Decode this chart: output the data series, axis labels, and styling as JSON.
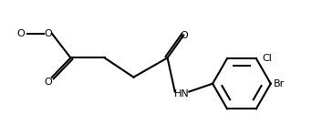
{
  "bg_color": "#ffffff",
  "line_color": "#000000",
  "line_width": 1.5,
  "font_size": 8,
  "text_color": "#000000",
  "labels": {
    "methyl": "O",
    "oxygen_single": "O",
    "carbonyl_o": "O",
    "hn": "HN",
    "cl": "Cl",
    "br": "Br"
  }
}
